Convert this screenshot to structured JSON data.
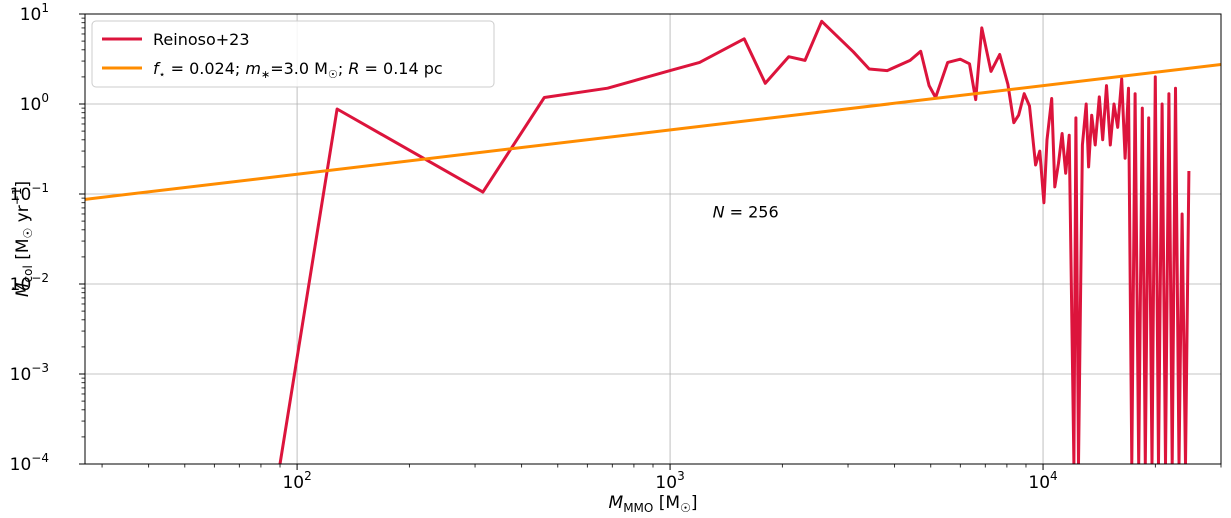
{
  "chart_data": {
    "type": "line",
    "xscale": "log",
    "yscale": "log",
    "xlim": [
      27,
      30000
    ],
    "ylim": [
      0.0001,
      10
    ],
    "grid": true,
    "xlabel": {
      "main": "M",
      "sub": "MMO",
      "unit": " [M",
      "unit_sub": "☉",
      "unit_end": "]"
    },
    "ylabel": {
      "main": "Ṁ",
      "sub": "col",
      "unit": " [M",
      "unit_sub": "☉",
      "unit_mid": " yr",
      "unit_sup": "−1",
      "unit_end": "]"
    },
    "xticks": [
      {
        "value": 100,
        "base": "10",
        "exp": "2"
      },
      {
        "value": 1000,
        "base": "10",
        "exp": "3"
      },
      {
        "value": 10000,
        "base": "10",
        "exp": "4"
      }
    ],
    "yticks": [
      {
        "value": 10,
        "base": "10",
        "exp": "1"
      },
      {
        "value": 1,
        "base": "10",
        "exp": "0"
      },
      {
        "value": 0.1,
        "base": "10",
        "exp": "−1"
      },
      {
        "value": 0.01,
        "base": "10",
        "exp": "−2"
      },
      {
        "value": 0.001,
        "base": "10",
        "exp": "−3"
      },
      {
        "value": 0.0001,
        "base": "10",
        "exp": "−4"
      }
    ],
    "annotation": {
      "text_var": "N",
      "text_rest": " = 256",
      "x": 1300,
      "y": 0.055
    },
    "legend_position": "upper left",
    "series": [
      {
        "name": "Reinoso+23",
        "color": "#dc143c",
        "x": [
          90,
          128,
          315,
          460,
          680,
          1000,
          1200,
          1580,
          1800,
          2080,
          2300,
          2550,
          3100,
          3420,
          3820,
          4400,
          4700,
          4950,
          5150,
          5550,
          6000,
          6350,
          6600,
          6850,
          7250,
          7650,
          8050,
          8350,
          8600,
          8900,
          9200,
          9550,
          9800,
          10050,
          10250,
          10550,
          10750,
          11000,
          11250,
          11500,
          11750,
          12100,
          12250,
          12450,
          12750,
          13050,
          13250,
          13500,
          13800,
          14150,
          14450,
          14800,
          15150,
          15500,
          15850,
          16250,
          16600,
          16950,
          17300,
          17650,
          18050,
          18450,
          18800,
          19200,
          19600,
          20000,
          20400,
          20850,
          21300,
          21750,
          22200,
          22650,
          23150,
          23600,
          24100,
          24600
        ],
        "y": [
          0.0001,
          0.88,
          0.105,
          1.18,
          1.5,
          2.35,
          2.9,
          5.3,
          1.7,
          3.35,
          3.05,
          8.3,
          3.8,
          2.45,
          2.35,
          3.05,
          3.85,
          1.6,
          1.18,
          2.9,
          3.15,
          2.8,
          1.12,
          7.0,
          2.3,
          3.55,
          1.65,
          0.62,
          0.75,
          1.3,
          0.95,
          0.21,
          0.3,
          0.08,
          0.4,
          1.15,
          0.12,
          0.22,
          0.47,
          0.17,
          0.45,
          0.0001,
          0.7,
          0.0001,
          0.35,
          1.0,
          0.2,
          0.75,
          0.35,
          1.2,
          0.4,
          1.6,
          0.35,
          1.0,
          0.55,
          1.9,
          0.25,
          1.5,
          0.0001,
          1.3,
          0.0001,
          0.9,
          0.0001,
          0.7,
          0.0001,
          2.0,
          0.0001,
          1.0,
          0.0001,
          1.3,
          0.0001,
          1.5,
          0.0001,
          0.06,
          0.0001,
          0.18
        ]
      },
      {
        "name_var1": "f",
        "name_sub1": "⋆",
        "name_part2": " = 0.024; ",
        "name_var2": "m",
        "name_sub2": "∗",
        "name_part3": "=3.0 M",
        "name_sub3": "☉",
        "name_part4": "; ",
        "name_var3": "R",
        "name_part5": " = 0.14 pc",
        "color": "#ff8c00",
        "x": [
          27,
          30000
        ],
        "y": [
          0.087,
          2.75
        ]
      }
    ]
  }
}
